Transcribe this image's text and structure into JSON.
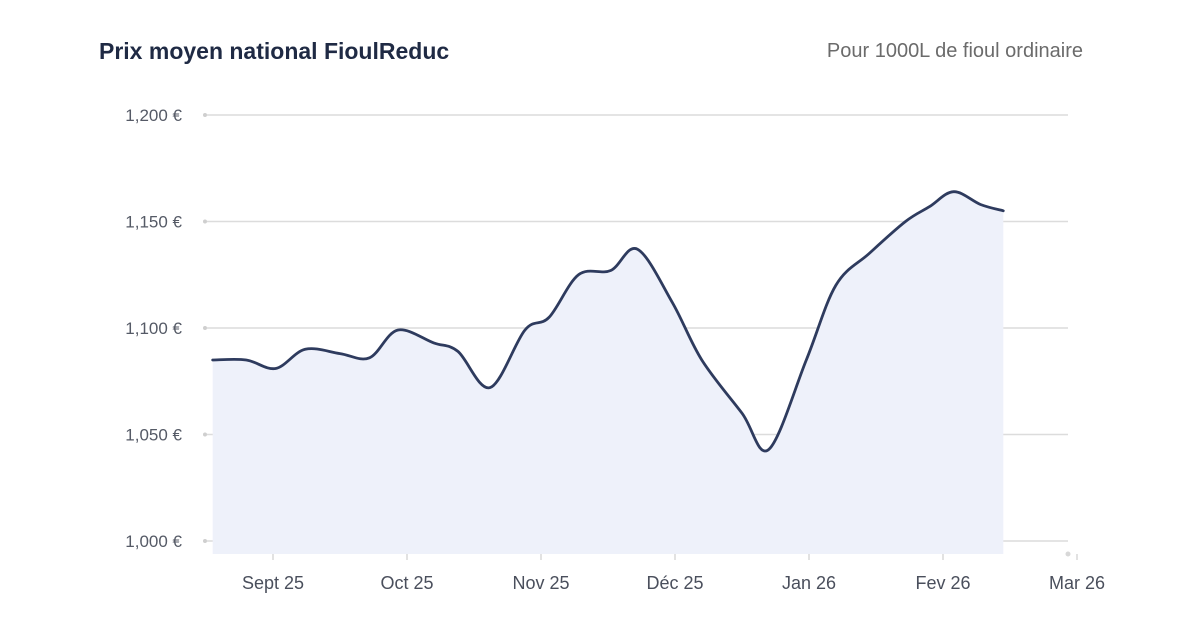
{
  "chart_data": {
    "type": "area",
    "title": "Prix moyen national FioulReduc",
    "subtitle": "Pour 1000L de fioul ordinaire",
    "y_ticks": [
      "1,200 €",
      "1,150 €",
      "1,100 €",
      "1,050 €",
      "1,000 €"
    ],
    "y_tick_values": [
      1200,
      1150,
      1100,
      1050,
      1000
    ],
    "ylim": [
      1000,
      1200
    ],
    "x_ticks": [
      "Sept 25",
      "Oct 25",
      "Nov 25",
      "Déc 25",
      "Jan 26",
      "Fev 26",
      "Mar 26"
    ],
    "grid": true,
    "colors": {
      "line": "#2e3b5e",
      "fill": "#eef1fa",
      "grid": "#dcdcdc"
    },
    "series": [
      {
        "points": [
          [
            -0.45,
            1085
          ],
          [
            -0.2,
            1085
          ],
          [
            0.02,
            1081
          ],
          [
            0.24,
            1090
          ],
          [
            0.5,
            1088
          ],
          [
            0.72,
            1086
          ],
          [
            0.93,
            1099
          ],
          [
            1.2,
            1093
          ],
          [
            1.38,
            1089
          ],
          [
            1.62,
            1072
          ],
          [
            1.88,
            1099
          ],
          [
            2.06,
            1105
          ],
          [
            2.28,
            1125
          ],
          [
            2.52,
            1127
          ],
          [
            2.72,
            1137
          ],
          [
            2.98,
            1112
          ],
          [
            3.2,
            1085
          ],
          [
            3.5,
            1060
          ],
          [
            3.7,
            1043
          ],
          [
            3.98,
            1085
          ],
          [
            4.2,
            1120
          ],
          [
            4.45,
            1135
          ],
          [
            4.72,
            1150
          ],
          [
            4.9,
            1157
          ],
          [
            5.08,
            1164
          ],
          [
            5.28,
            1158
          ],
          [
            5.45,
            1155
          ]
        ]
      }
    ]
  }
}
